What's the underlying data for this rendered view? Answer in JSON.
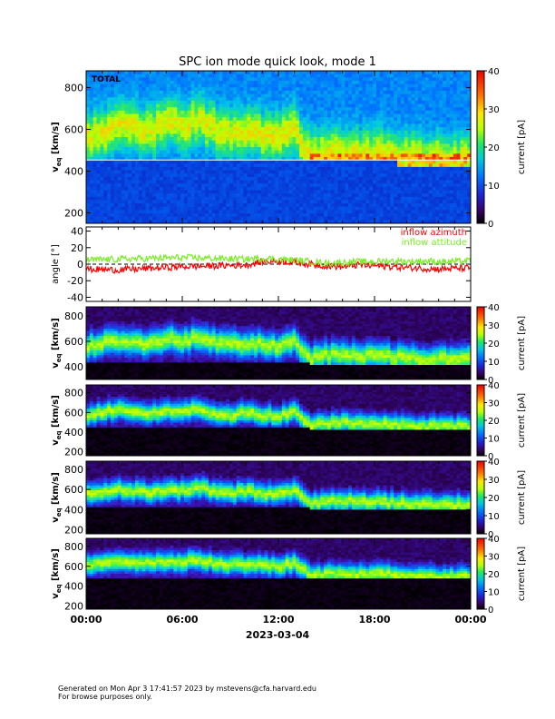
{
  "title": "SPC ion mode quick look, mode 1",
  "date_label": "2023-03-04",
  "x_tick_labels": [
    "00:00",
    "06:00",
    "12:00",
    "18:00",
    "00:00"
  ],
  "footer": {
    "line1": "Generated on Mon Apr  3 17:41:57 2023 by mstevens@cfa.harvard.edu",
    "line2": "For browse purposes only."
  },
  "chart_data": [
    {
      "type": "heatmap",
      "panel_label": "TOTAL",
      "ylabel": "v_eq [km/s]",
      "ylabel_main": "v",
      "ylabel_sub": "eq",
      "ylabel_unit": " [km/s]",
      "ylim": [
        150,
        880
      ],
      "y_ticks": [
        200,
        400,
        600,
        800
      ],
      "x_range_hours": [
        0,
        24
      ],
      "colorbar": {
        "label": "current [pA]",
        "range": [
          0,
          40
        ],
        "ticks": [
          0,
          10,
          20,
          30,
          40
        ]
      },
      "colormap": "rainbow",
      "gap_line_kms": 453,
      "bulk_speed_kms": [
        [
          0,
          560
        ],
        [
          1,
          580
        ],
        [
          2,
          620
        ],
        [
          3,
          600
        ],
        [
          4,
          590
        ],
        [
          5,
          640
        ],
        [
          6,
          610
        ],
        [
          7,
          640
        ],
        [
          8,
          600
        ],
        [
          9,
          580
        ],
        [
          10,
          590
        ],
        [
          11,
          570
        ],
        [
          12,
          560
        ],
        [
          13,
          600
        ],
        [
          14,
          470
        ],
        [
          15,
          490
        ],
        [
          16,
          500
        ],
        [
          17,
          480
        ],
        [
          18,
          490
        ],
        [
          19,
          480
        ],
        [
          20,
          470
        ],
        [
          21,
          460
        ],
        [
          22,
          460
        ],
        [
          23,
          460
        ],
        [
          24,
          460
        ]
      ]
    },
    {
      "type": "line",
      "ylabel": "angle [°]",
      "ylim": [
        -45,
        45
      ],
      "y_ticks": [
        -40,
        -20,
        0,
        20,
        40
      ],
      "series": [
        {
          "name": "inflow azimuth",
          "color": "#ff0000",
          "points": [
            [
              0,
              -6
            ],
            [
              2,
              -7
            ],
            [
              4,
              -5
            ],
            [
              6,
              -3
            ],
            [
              8,
              -2
            ],
            [
              10,
              -1
            ],
            [
              11,
              3
            ],
            [
              12,
              4
            ],
            [
              13,
              2
            ],
            [
              14,
              0
            ],
            [
              15,
              -2
            ],
            [
              16,
              -3
            ],
            [
              17,
              -1
            ],
            [
              18,
              -2
            ],
            [
              19,
              -3
            ],
            [
              20,
              -4
            ],
            [
              21,
              -5
            ],
            [
              22,
              -6
            ],
            [
              23,
              -5
            ],
            [
              24,
              -5
            ]
          ]
        },
        {
          "name": "inflow attitude",
          "color": "#77ee22",
          "points": [
            [
              0,
              5
            ],
            [
              2,
              6
            ],
            [
              4,
              7
            ],
            [
              6,
              8
            ],
            [
              8,
              7
            ],
            [
              10,
              6
            ],
            [
              11,
              7
            ],
            [
              12,
              6
            ],
            [
              13,
              5
            ],
            [
              14,
              3
            ],
            [
              15,
              1
            ],
            [
              16,
              2
            ],
            [
              17,
              3
            ],
            [
              18,
              3
            ],
            [
              19,
              4
            ],
            [
              20,
              3
            ],
            [
              21,
              4
            ],
            [
              22,
              3
            ],
            [
              23,
              3
            ],
            [
              24,
              4
            ]
          ]
        }
      ]
    },
    {
      "type": "heatmap",
      "panel_label": "",
      "ylabel": "v_eq [km/s]",
      "ylabel_main": "v",
      "ylabel_sub": "eq",
      "ylabel_unit": " [km/s]",
      "ylim": [
        300,
        870
      ],
      "y_ticks": [
        400,
        600,
        800
      ],
      "x_range_hours": [
        0,
        24
      ],
      "colorbar": {
        "label": "current [pA]",
        "range": [
          0,
          40
        ],
        "ticks": [
          0,
          10,
          20,
          30,
          40
        ]
      },
      "colormap": "rainbow_dark",
      "cutoff_kms": [
        [
          0,
          440
        ],
        [
          14,
          440
        ],
        [
          14,
          410
        ],
        [
          24,
          410
        ]
      ],
      "bulk_speed_kms": [
        [
          0,
          560
        ],
        [
          1,
          580
        ],
        [
          2,
          610
        ],
        [
          3,
          590
        ],
        [
          4,
          580
        ],
        [
          5,
          620
        ],
        [
          6,
          600
        ],
        [
          7,
          630
        ],
        [
          8,
          590
        ],
        [
          9,
          570
        ],
        [
          10,
          580
        ],
        [
          11,
          570
        ],
        [
          12,
          560
        ],
        [
          13,
          590
        ],
        [
          14,
          470
        ],
        [
          15,
          490
        ],
        [
          16,
          500
        ],
        [
          17,
          480
        ],
        [
          18,
          490
        ],
        [
          19,
          480
        ],
        [
          20,
          470
        ],
        [
          21,
          460
        ],
        [
          22,
          460
        ],
        [
          23,
          460
        ],
        [
          24,
          460
        ]
      ]
    },
    {
      "type": "heatmap",
      "panel_label": "",
      "ylabel": "v_eq [km/s]",
      "ylabel_main": "v",
      "ylabel_sub": "eq",
      "ylabel_unit": " [km/s]",
      "ylim": [
        160,
        880
      ],
      "y_ticks": [
        200,
        400,
        600,
        800
      ],
      "x_range_hours": [
        0,
        24
      ],
      "colorbar": {
        "label": "current [pA]",
        "range": [
          0,
          40
        ],
        "ticks": [
          0,
          10,
          20,
          30,
          40
        ]
      },
      "colormap": "rainbow_dark",
      "cutoff_kms": [
        [
          0,
          440
        ],
        [
          14,
          440
        ],
        [
          14,
          420
        ],
        [
          24,
          420
        ]
      ],
      "bulk_speed_kms": [
        [
          0,
          560
        ],
        [
          1,
          600
        ],
        [
          2,
          630
        ],
        [
          3,
          600
        ],
        [
          4,
          580
        ],
        [
          5,
          620
        ],
        [
          6,
          610
        ],
        [
          7,
          640
        ],
        [
          8,
          590
        ],
        [
          9,
          570
        ],
        [
          10,
          590
        ],
        [
          11,
          570
        ],
        [
          12,
          560
        ],
        [
          13,
          600
        ],
        [
          14,
          470
        ],
        [
          15,
          490
        ],
        [
          16,
          510
        ],
        [
          17,
          480
        ],
        [
          18,
          490
        ],
        [
          19,
          480
        ],
        [
          20,
          470
        ],
        [
          21,
          460
        ],
        [
          22,
          460
        ],
        [
          23,
          460
        ],
        [
          24,
          460
        ]
      ]
    },
    {
      "type": "heatmap",
      "panel_label": "",
      "ylabel": "v_eq [km/s]",
      "ylabel_main": "v",
      "ylabel_sub": "eq",
      "ylabel_unit": " [km/s]",
      "ylim": [
        160,
        880
      ],
      "y_ticks": [
        200,
        400,
        600,
        800
      ],
      "x_range_hours": [
        0,
        24
      ],
      "colorbar": {
        "label": "current [pA]",
        "range": [
          0,
          40
        ],
        "ticks": [
          0,
          10,
          20,
          30,
          40
        ]
      },
      "colormap": "rainbow_dark",
      "cutoff_kms": [
        [
          0,
          430
        ],
        [
          14,
          430
        ],
        [
          14,
          410
        ],
        [
          24,
          410
        ]
      ],
      "bulk_speed_kms": [
        [
          0,
          550
        ],
        [
          1,
          570
        ],
        [
          2,
          600
        ],
        [
          3,
          580
        ],
        [
          4,
          570
        ],
        [
          5,
          600
        ],
        [
          6,
          590
        ],
        [
          7,
          620
        ],
        [
          8,
          580
        ],
        [
          9,
          560
        ],
        [
          10,
          580
        ],
        [
          11,
          560
        ],
        [
          12,
          550
        ],
        [
          13,
          590
        ],
        [
          14,
          460
        ],
        [
          15,
          480
        ],
        [
          16,
          490
        ],
        [
          17,
          470
        ],
        [
          18,
          480
        ],
        [
          19,
          470
        ],
        [
          20,
          460
        ],
        [
          21,
          450
        ],
        [
          22,
          450
        ],
        [
          23,
          450
        ],
        [
          24,
          450
        ]
      ]
    },
    {
      "type": "heatmap",
      "panel_label": "",
      "ylabel": "v_eq [km/s]",
      "ylabel_main": "v",
      "ylabel_sub": "eq",
      "ylabel_unit": " [km/s]",
      "ylim": [
        170,
        880
      ],
      "y_ticks": [
        200,
        400,
        600,
        800
      ],
      "x_range_hours": [
        0,
        24
      ],
      "colorbar": {
        "label": "current [pA]",
        "range": [
          0,
          40
        ],
        "ticks": [
          0,
          10,
          20,
          30,
          40
        ]
      },
      "colormap": "rainbow_dark",
      "cutoff_kms": [
        [
          0,
          480
        ],
        [
          14,
          480
        ],
        [
          14,
          470
        ],
        [
          24,
          470
        ]
      ],
      "bulk_speed_kms": [
        [
          0,
          610
        ],
        [
          1,
          630
        ],
        [
          2,
          660
        ],
        [
          3,
          640
        ],
        [
          4,
          620
        ],
        [
          5,
          650
        ],
        [
          6,
          640
        ],
        [
          7,
          660
        ],
        [
          8,
          630
        ],
        [
          9,
          610
        ],
        [
          10,
          620
        ],
        [
          11,
          610
        ],
        [
          12,
          600
        ],
        [
          13,
          630
        ],
        [
          14,
          510
        ],
        [
          15,
          520
        ],
        [
          16,
          530
        ],
        [
          17,
          510
        ],
        [
          18,
          520
        ],
        [
          19,
          510
        ],
        [
          20,
          500
        ],
        [
          21,
          500
        ],
        [
          22,
          490
        ],
        [
          23,
          490
        ],
        [
          24,
          490
        ]
      ]
    }
  ]
}
